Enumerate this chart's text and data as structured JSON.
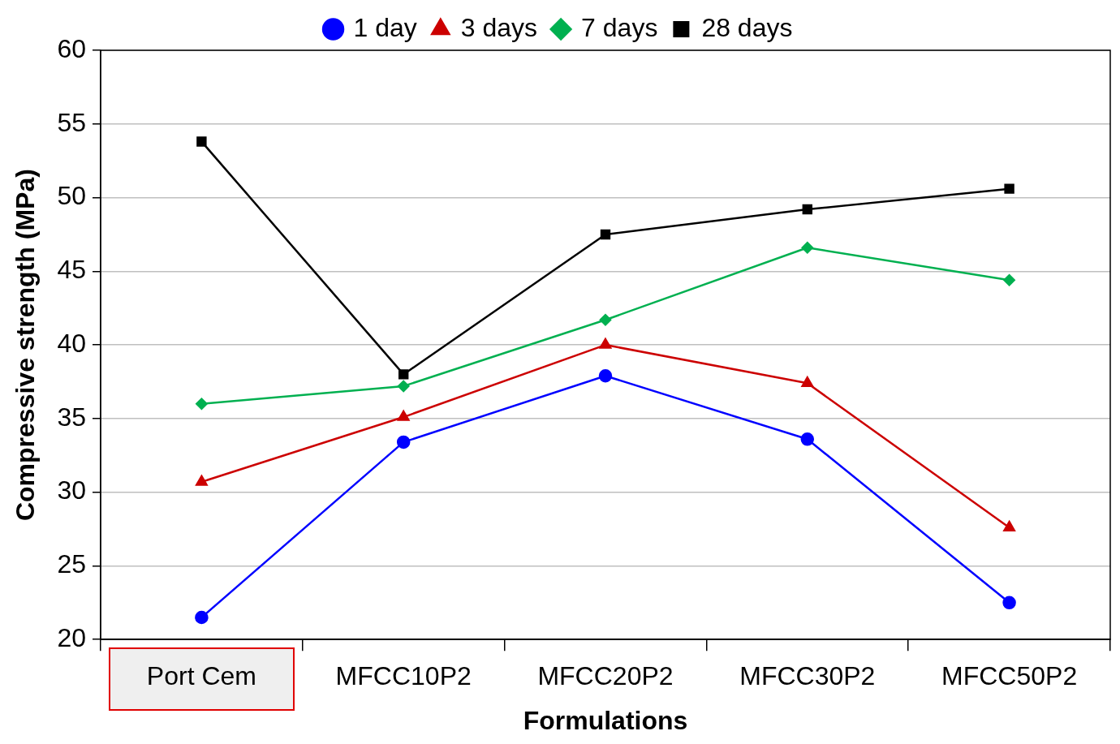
{
  "chart_data": {
    "type": "line",
    "xlabel": "Formulations",
    "ylabel": "Compressive strength (MPa)",
    "categories": [
      "Port Cem",
      "MFCC10P2",
      "MFCC20P2",
      "MFCC30P2",
      "MFCC50P2"
    ],
    "series": [
      {
        "name": "1 day",
        "color": "#0000ff",
        "marker": "circle",
        "values": [
          21.5,
          33.4,
          37.9,
          33.6,
          22.5
        ]
      },
      {
        "name": "3 days",
        "color": "#cc0000",
        "marker": "triangle",
        "values": [
          30.7,
          35.1,
          40.0,
          37.4,
          27.6
        ]
      },
      {
        "name": "7 days",
        "color": "#00b050",
        "marker": "diamond",
        "values": [
          36.0,
          37.2,
          41.7,
          46.6,
          44.4
        ]
      },
      {
        "name": "28 days",
        "color": "#000000",
        "marker": "square",
        "values": [
          53.8,
          38.0,
          47.5,
          49.2,
          50.6
        ]
      }
    ],
    "ylim": [
      20,
      60
    ],
    "yticks": [
      20,
      25,
      30,
      35,
      40,
      45,
      50,
      55,
      60
    ],
    "grid": "y",
    "legend": "top",
    "line_style": "solid"
  }
}
